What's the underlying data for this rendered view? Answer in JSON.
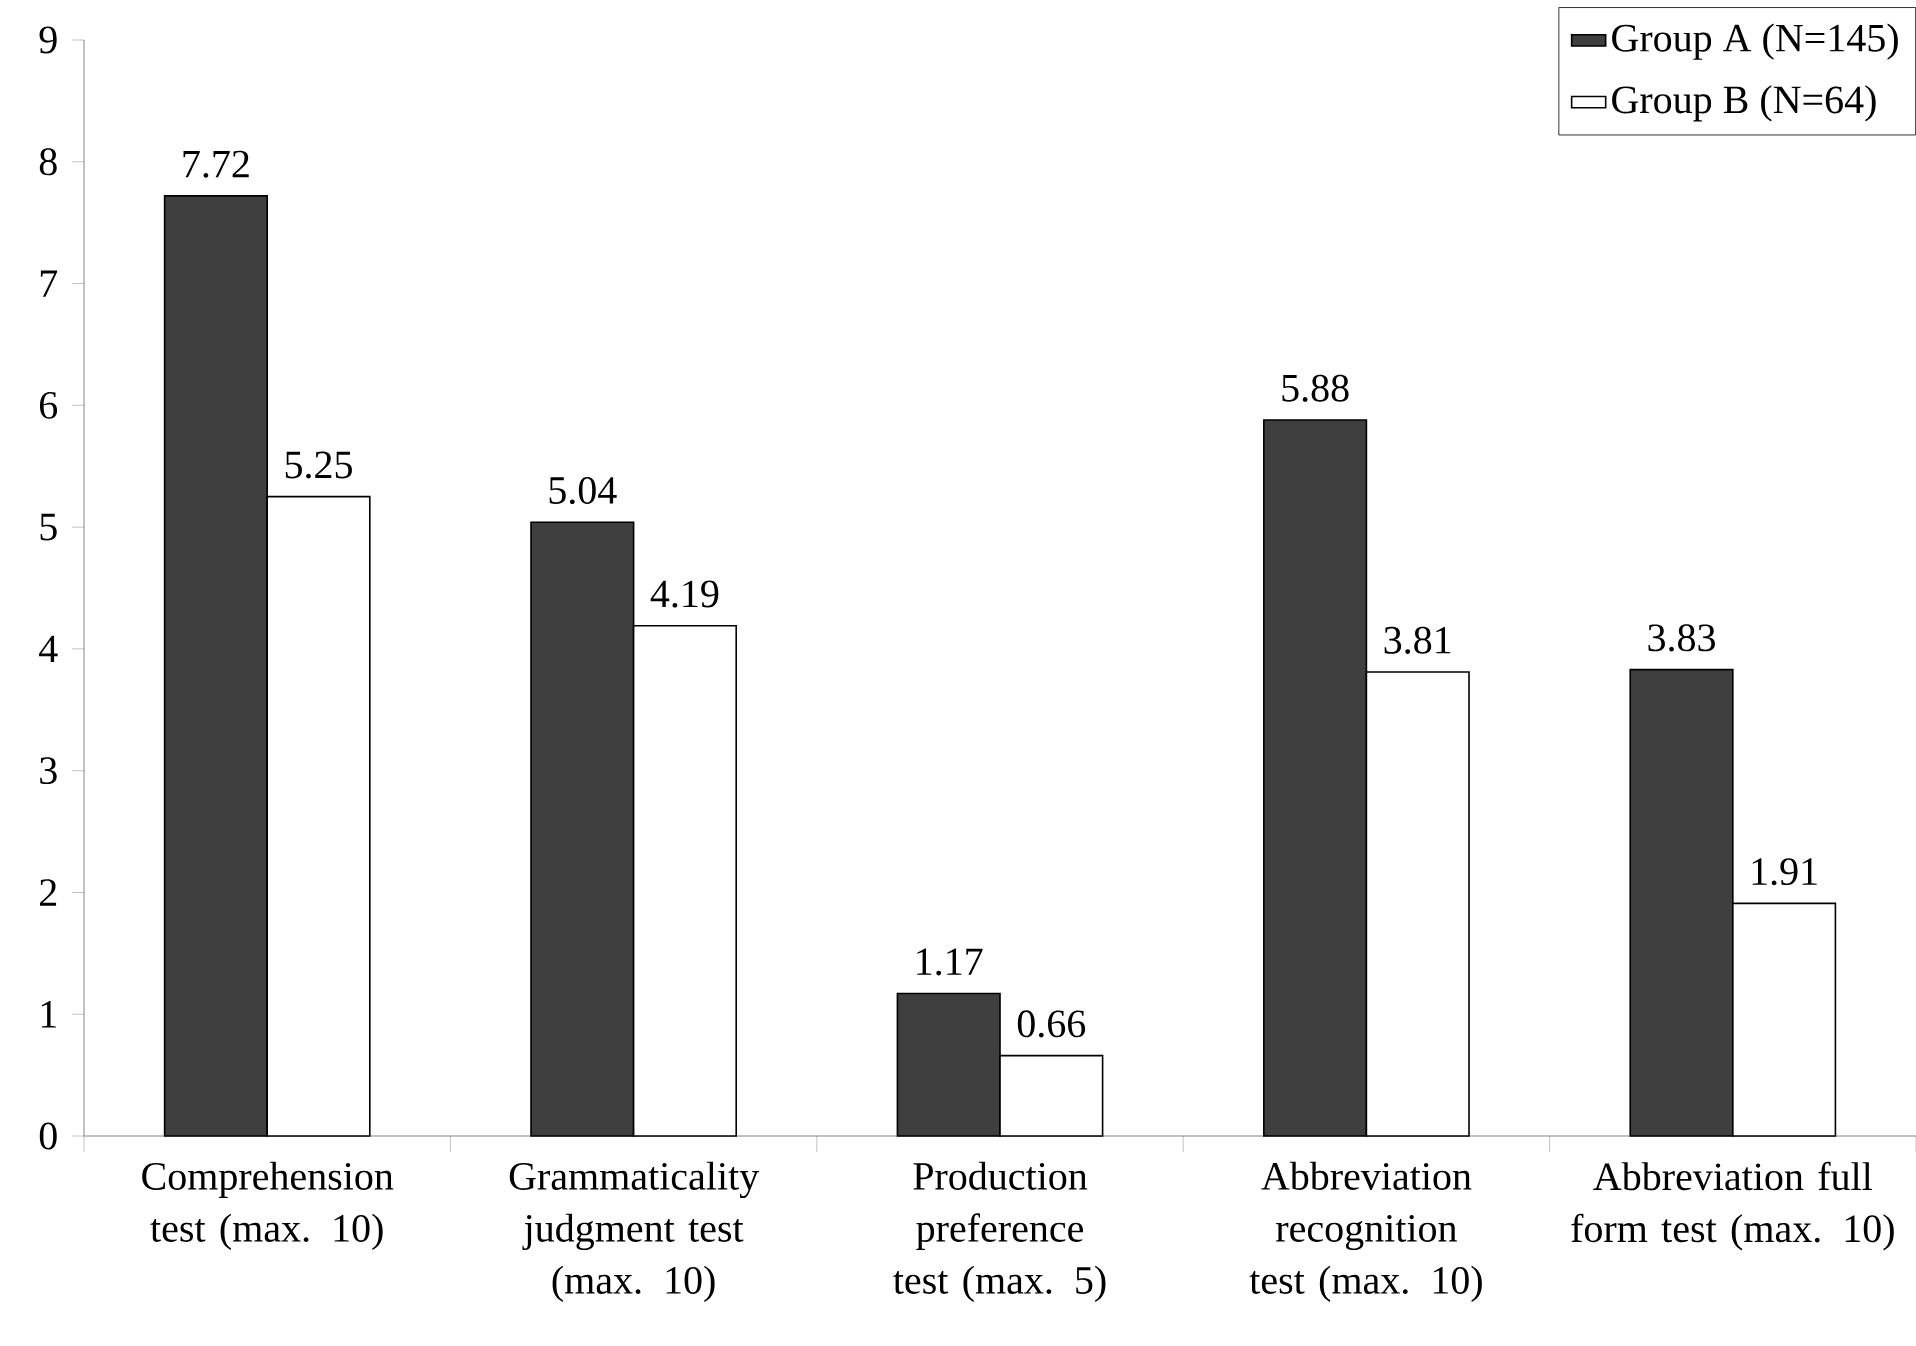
{
  "chart_data": {
    "type": "bar",
    "categories": [
      "Comprehension test (max. 10)",
      "Grammaticality judgment test (max. 10)",
      "Production preference test (max. 5)",
      "Abbreviation recognition test (max. 10)",
      "Abbreviation full form test (max. 10)"
    ],
    "series": [
      {
        "name": "Group A (N=145)",
        "color": "#3f3f3f",
        "values": [
          7.72,
          5.04,
          1.17,
          5.88,
          3.83
        ]
      },
      {
        "name": "Group B (N=64)",
        "color": "#ffffff",
        "values": [
          5.25,
          4.19,
          0.66,
          3.81,
          1.91
        ]
      }
    ],
    "ylim": [
      0,
      9
    ],
    "yticks": [
      0,
      1,
      2,
      3,
      4,
      5,
      6,
      7,
      8,
      9
    ],
    "data_labels": true,
    "grid": false,
    "legend": "top right"
  }
}
